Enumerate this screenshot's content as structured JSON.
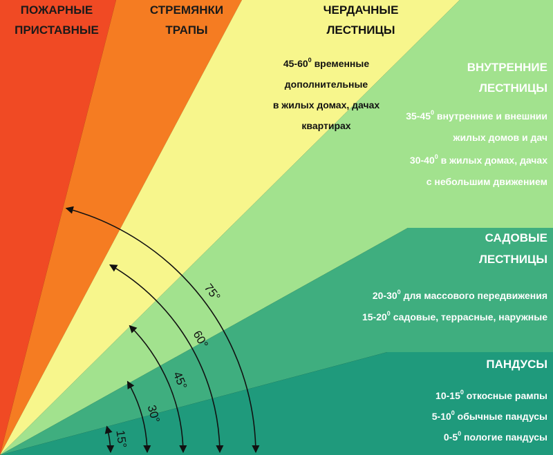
{
  "zones": [
    {
      "title": [
        "ПОЖАРНЫЕ",
        "ПРИСТАВНЫЕ"
      ],
      "lines": []
    },
    {
      "title": [
        "СТРЕМЯНКИ",
        "ТРАПЫ"
      ],
      "lines": []
    },
    {
      "title": [
        "ЧЕРДАЧНЫЕ",
        "ЛЕСТНИЦЫ"
      ],
      "lines": [
        {
          "range": "45-60",
          "sup": "0",
          "text": " временные"
        },
        {
          "text": "дополнительные"
        },
        {
          "text": "в жилых домах, дачах"
        },
        {
          "text": "квартирах"
        }
      ]
    },
    {
      "title": [
        "ВНУТРЕННИЕ",
        "ЛЕСТНИЦЫ"
      ],
      "lines": [
        {
          "range": "35-45",
          "sup": "0",
          "text": " внутренние и внешнии"
        },
        {
          "text": "жилых домов и дач"
        },
        {
          "range": "30-40",
          "sup": "0",
          "text": " в жилых домах, дачах"
        },
        {
          "text": "с небольшим движением"
        }
      ]
    },
    {
      "title": [
        "САДОВЫЕ",
        "ЛЕСТНИЦЫ"
      ],
      "lines": [
        {
          "range": "20-30",
          "sup": "0",
          "text": " для массового передвижения"
        },
        {
          "range": "15-20",
          "sup": "0",
          "text": " садовые, террасные, наружные"
        }
      ]
    },
    {
      "title": [
        "ПАНДУСЫ"
      ],
      "lines": [
        {
          "range": "10-15",
          "sup": "0",
          "text": " откосные рампы"
        },
        {
          "range": "5-10",
          "sup": "0",
          "text": " обычные пандусы"
        },
        {
          "range": "0-5",
          "sup": "0",
          "text": " пологие пандусы"
        }
      ]
    }
  ],
  "angles": [
    {
      "value": 15,
      "label": "15°"
    },
    {
      "value": 30,
      "label": "30°"
    },
    {
      "value": 45,
      "label": "45°"
    },
    {
      "value": 60,
      "label": "60°"
    },
    {
      "value": 75,
      "label": "75°"
    }
  ]
}
